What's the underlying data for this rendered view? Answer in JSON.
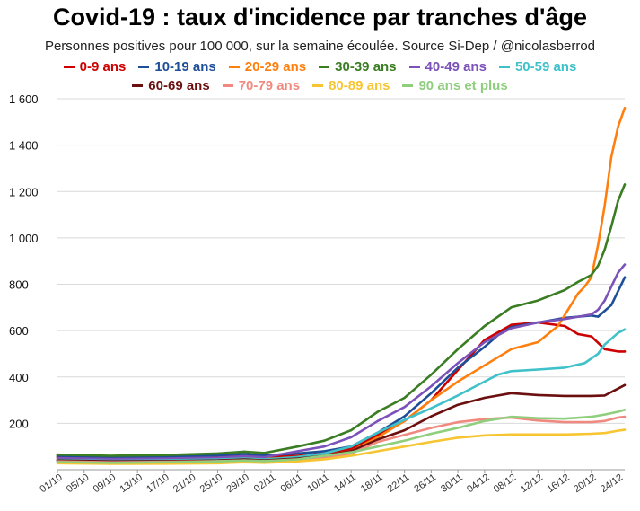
{
  "chart_data": {
    "type": "line",
    "title": "Covid-19 : taux d'incidence par tranches d'âge",
    "subtitle": "Personnes positives pour 100 000, sur la semaine écoulée. Source Si-Dep / @nicolasberrod",
    "xlabel": "",
    "ylabel": "",
    "ylim": [
      0,
      1600
    ],
    "yticks": [
      200,
      400,
      600,
      800,
      1000,
      1200,
      1400,
      1600
    ],
    "ytick_labels": [
      "200",
      "400",
      "600",
      "800",
      "1 000",
      "1 200",
      "1 400",
      "1 600"
    ],
    "grid": "horizontal",
    "x_tick_labels": [
      "01/10",
      "05/10",
      "09/10",
      "13/10",
      "17/10",
      "21/10",
      "25/10",
      "29/10",
      "02/11",
      "06/11",
      "10/11",
      "14/11",
      "18/11",
      "22/11",
      "26/11",
      "30/11",
      "04/12",
      "08/12",
      "12/12",
      "16/12",
      "20/12",
      "24/12"
    ],
    "x_tick_days": [
      0,
      4,
      8,
      12,
      16,
      20,
      24,
      28,
      32,
      36,
      40,
      44,
      48,
      52,
      56,
      60,
      64,
      68,
      72,
      76,
      80,
      84
    ],
    "x_range_days": [
      0,
      85
    ],
    "series": [
      {
        "name": "0-9 ans",
        "color": "#cc0000",
        "points": [
          [
            0,
            55
          ],
          [
            8,
            50
          ],
          [
            16,
            52
          ],
          [
            24,
            55
          ],
          [
            28,
            58
          ],
          [
            31,
            55
          ],
          [
            36,
            60
          ],
          [
            40,
            70
          ],
          [
            44,
            90
          ],
          [
            48,
            150
          ],
          [
            52,
            210
          ],
          [
            56,
            300
          ],
          [
            60,
            430
          ],
          [
            64,
            560
          ],
          [
            68,
            625
          ],
          [
            72,
            635
          ],
          [
            76,
            620
          ],
          [
            78,
            585
          ],
          [
            80,
            575
          ],
          [
            82,
            520
          ],
          [
            84,
            510
          ],
          [
            85,
            510
          ]
        ]
      },
      {
        "name": "10-19 ans",
        "color": "#1f4e99",
        "points": [
          [
            0,
            60
          ],
          [
            8,
            55
          ],
          [
            16,
            57
          ],
          [
            24,
            62
          ],
          [
            28,
            68
          ],
          [
            31,
            62
          ],
          [
            36,
            70
          ],
          [
            40,
            80
          ],
          [
            44,
            100
          ],
          [
            48,
            160
          ],
          [
            52,
            230
          ],
          [
            56,
            330
          ],
          [
            60,
            440
          ],
          [
            64,
            530
          ],
          [
            66,
            580
          ],
          [
            68,
            615
          ],
          [
            72,
            635
          ],
          [
            76,
            655
          ],
          [
            80,
            665
          ],
          [
            81,
            660
          ],
          [
            83,
            710
          ],
          [
            85,
            830
          ]
        ]
      },
      {
        "name": "20-29 ans",
        "color": "#ff7f0e",
        "points": [
          [
            0,
            45
          ],
          [
            8,
            40
          ],
          [
            16,
            42
          ],
          [
            24,
            46
          ],
          [
            28,
            50
          ],
          [
            31,
            47
          ],
          [
            36,
            52
          ],
          [
            40,
            60
          ],
          [
            44,
            80
          ],
          [
            48,
            140
          ],
          [
            52,
            210
          ],
          [
            56,
            300
          ],
          [
            60,
            380
          ],
          [
            64,
            450
          ],
          [
            68,
            520
          ],
          [
            72,
            550
          ],
          [
            75,
            620
          ],
          [
            78,
            760
          ],
          [
            79,
            790
          ],
          [
            80,
            830
          ],
          [
            81,
            970
          ],
          [
            82,
            1140
          ],
          [
            83,
            1350
          ],
          [
            84,
            1480
          ],
          [
            85,
            1560
          ]
        ]
      },
      {
        "name": "30-39 ans",
        "color": "#3a7d22",
        "points": [
          [
            0,
            65
          ],
          [
            8,
            60
          ],
          [
            16,
            63
          ],
          [
            24,
            70
          ],
          [
            28,
            78
          ],
          [
            31,
            72
          ],
          [
            36,
            100
          ],
          [
            40,
            125
          ],
          [
            44,
            170
          ],
          [
            48,
            250
          ],
          [
            52,
            310
          ],
          [
            56,
            410
          ],
          [
            60,
            520
          ],
          [
            64,
            620
          ],
          [
            68,
            700
          ],
          [
            72,
            730
          ],
          [
            76,
            775
          ],
          [
            78,
            810
          ],
          [
            80,
            840
          ],
          [
            81,
            880
          ],
          [
            82,
            950
          ],
          [
            83,
            1050
          ],
          [
            84,
            1160
          ],
          [
            85,
            1230
          ]
        ]
      },
      {
        "name": "40-49 ans",
        "color": "#7b52b9",
        "points": [
          [
            0,
            50
          ],
          [
            8,
            46
          ],
          [
            16,
            48
          ],
          [
            24,
            52
          ],
          [
            28,
            58
          ],
          [
            31,
            54
          ],
          [
            36,
            80
          ],
          [
            40,
            100
          ],
          [
            44,
            140
          ],
          [
            48,
            210
          ],
          [
            52,
            270
          ],
          [
            56,
            360
          ],
          [
            60,
            460
          ],
          [
            64,
            550
          ],
          [
            68,
            610
          ],
          [
            72,
            635
          ],
          [
            76,
            650
          ],
          [
            80,
            670
          ],
          [
            81,
            690
          ],
          [
            82,
            730
          ],
          [
            83,
            790
          ],
          [
            84,
            850
          ],
          [
            85,
            885
          ]
        ]
      },
      {
        "name": "50-59 ans",
        "color": "#3fc1c9",
        "points": [
          [
            0,
            42
          ],
          [
            8,
            38
          ],
          [
            16,
            40
          ],
          [
            24,
            44
          ],
          [
            28,
            48
          ],
          [
            31,
            44
          ],
          [
            36,
            55
          ],
          [
            40,
            70
          ],
          [
            44,
            100
          ],
          [
            48,
            160
          ],
          [
            52,
            215
          ],
          [
            56,
            265
          ],
          [
            60,
            320
          ],
          [
            64,
            380
          ],
          [
            66,
            410
          ],
          [
            68,
            425
          ],
          [
            72,
            432
          ],
          [
            76,
            440
          ],
          [
            79,
            460
          ],
          [
            81,
            500
          ],
          [
            82,
            540
          ],
          [
            84,
            590
          ],
          [
            85,
            605
          ]
        ]
      },
      {
        "name": "60-69 ans",
        "color": "#6b0f0f",
        "points": [
          [
            0,
            40
          ],
          [
            8,
            36
          ],
          [
            16,
            37
          ],
          [
            24,
            40
          ],
          [
            28,
            44
          ],
          [
            31,
            40
          ],
          [
            36,
            48
          ],
          [
            40,
            60
          ],
          [
            44,
            80
          ],
          [
            48,
            130
          ],
          [
            52,
            170
          ],
          [
            56,
            230
          ],
          [
            60,
            280
          ],
          [
            64,
            310
          ],
          [
            68,
            330
          ],
          [
            72,
            322
          ],
          [
            76,
            318
          ],
          [
            80,
            318
          ],
          [
            82,
            320
          ],
          [
            84,
            350
          ],
          [
            85,
            365
          ]
        ]
      },
      {
        "name": "70-79 ans",
        "color": "#f08a80",
        "points": [
          [
            0,
            36
          ],
          [
            8,
            32
          ],
          [
            16,
            34
          ],
          [
            24,
            37
          ],
          [
            28,
            40
          ],
          [
            31,
            37
          ],
          [
            36,
            42
          ],
          [
            40,
            50
          ],
          [
            44,
            70
          ],
          [
            48,
            120
          ],
          [
            52,
            150
          ],
          [
            56,
            180
          ],
          [
            60,
            205
          ],
          [
            64,
            218
          ],
          [
            68,
            225
          ],
          [
            72,
            212
          ],
          [
            76,
            205
          ],
          [
            80,
            205
          ],
          [
            82,
            210
          ],
          [
            84,
            225
          ],
          [
            85,
            228
          ]
        ]
      },
      {
        "name": "80-89 ans",
        "color": "#f7c531",
        "points": [
          [
            0,
            28
          ],
          [
            8,
            25
          ],
          [
            16,
            26
          ],
          [
            24,
            28
          ],
          [
            28,
            32
          ],
          [
            31,
            30
          ],
          [
            36,
            36
          ],
          [
            40,
            45
          ],
          [
            44,
            60
          ],
          [
            48,
            80
          ],
          [
            52,
            100
          ],
          [
            56,
            120
          ],
          [
            60,
            138
          ],
          [
            64,
            148
          ],
          [
            68,
            152
          ],
          [
            72,
            152
          ],
          [
            76,
            152
          ],
          [
            80,
            155
          ],
          [
            82,
            158
          ],
          [
            84,
            168
          ],
          [
            85,
            172
          ]
        ]
      },
      {
        "name": "90 ans et plus",
        "color": "#8fce7d",
        "points": [
          [
            0,
            33
          ],
          [
            8,
            30
          ],
          [
            16,
            32
          ],
          [
            24,
            36
          ],
          [
            28,
            40
          ],
          [
            31,
            37
          ],
          [
            36,
            45
          ],
          [
            40,
            60
          ],
          [
            44,
            75
          ],
          [
            48,
            100
          ],
          [
            52,
            125
          ],
          [
            56,
            155
          ],
          [
            60,
            180
          ],
          [
            64,
            210
          ],
          [
            68,
            228
          ],
          [
            72,
            222
          ],
          [
            76,
            220
          ],
          [
            80,
            228
          ],
          [
            82,
            238
          ],
          [
            84,
            250
          ],
          [
            85,
            258
          ]
        ]
      }
    ]
  }
}
